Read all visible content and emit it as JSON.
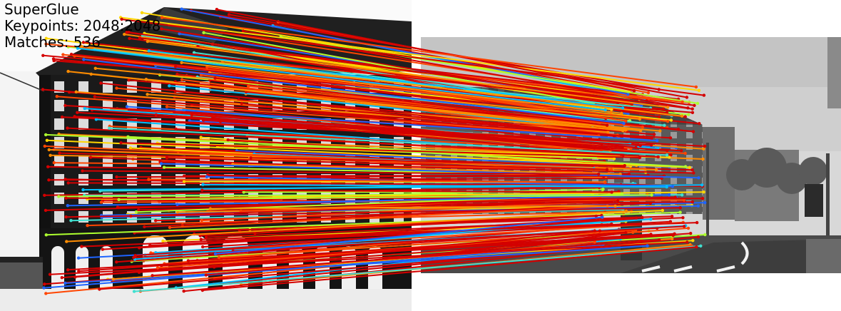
{
  "overlay": {
    "title": "SuperGlue",
    "keypoints": "Keypoints: 2048:2048",
    "matches": "Matches: 536"
  },
  "images": [
    {
      "name": "left-image",
      "description": "black and white photo of a multi-story building with arched colonnade"
    },
    {
      "name": "right-image",
      "description": "grayscale street view of the same building at a roundabout with trees"
    }
  ],
  "match_colors": [
    "#d40000",
    "#ff4500",
    "#ff8c00",
    "#ffd700",
    "#adff2f",
    "#40e0d0",
    "#00bfff",
    "#1e64ff",
    "#ff2000",
    "#e00000"
  ]
}
